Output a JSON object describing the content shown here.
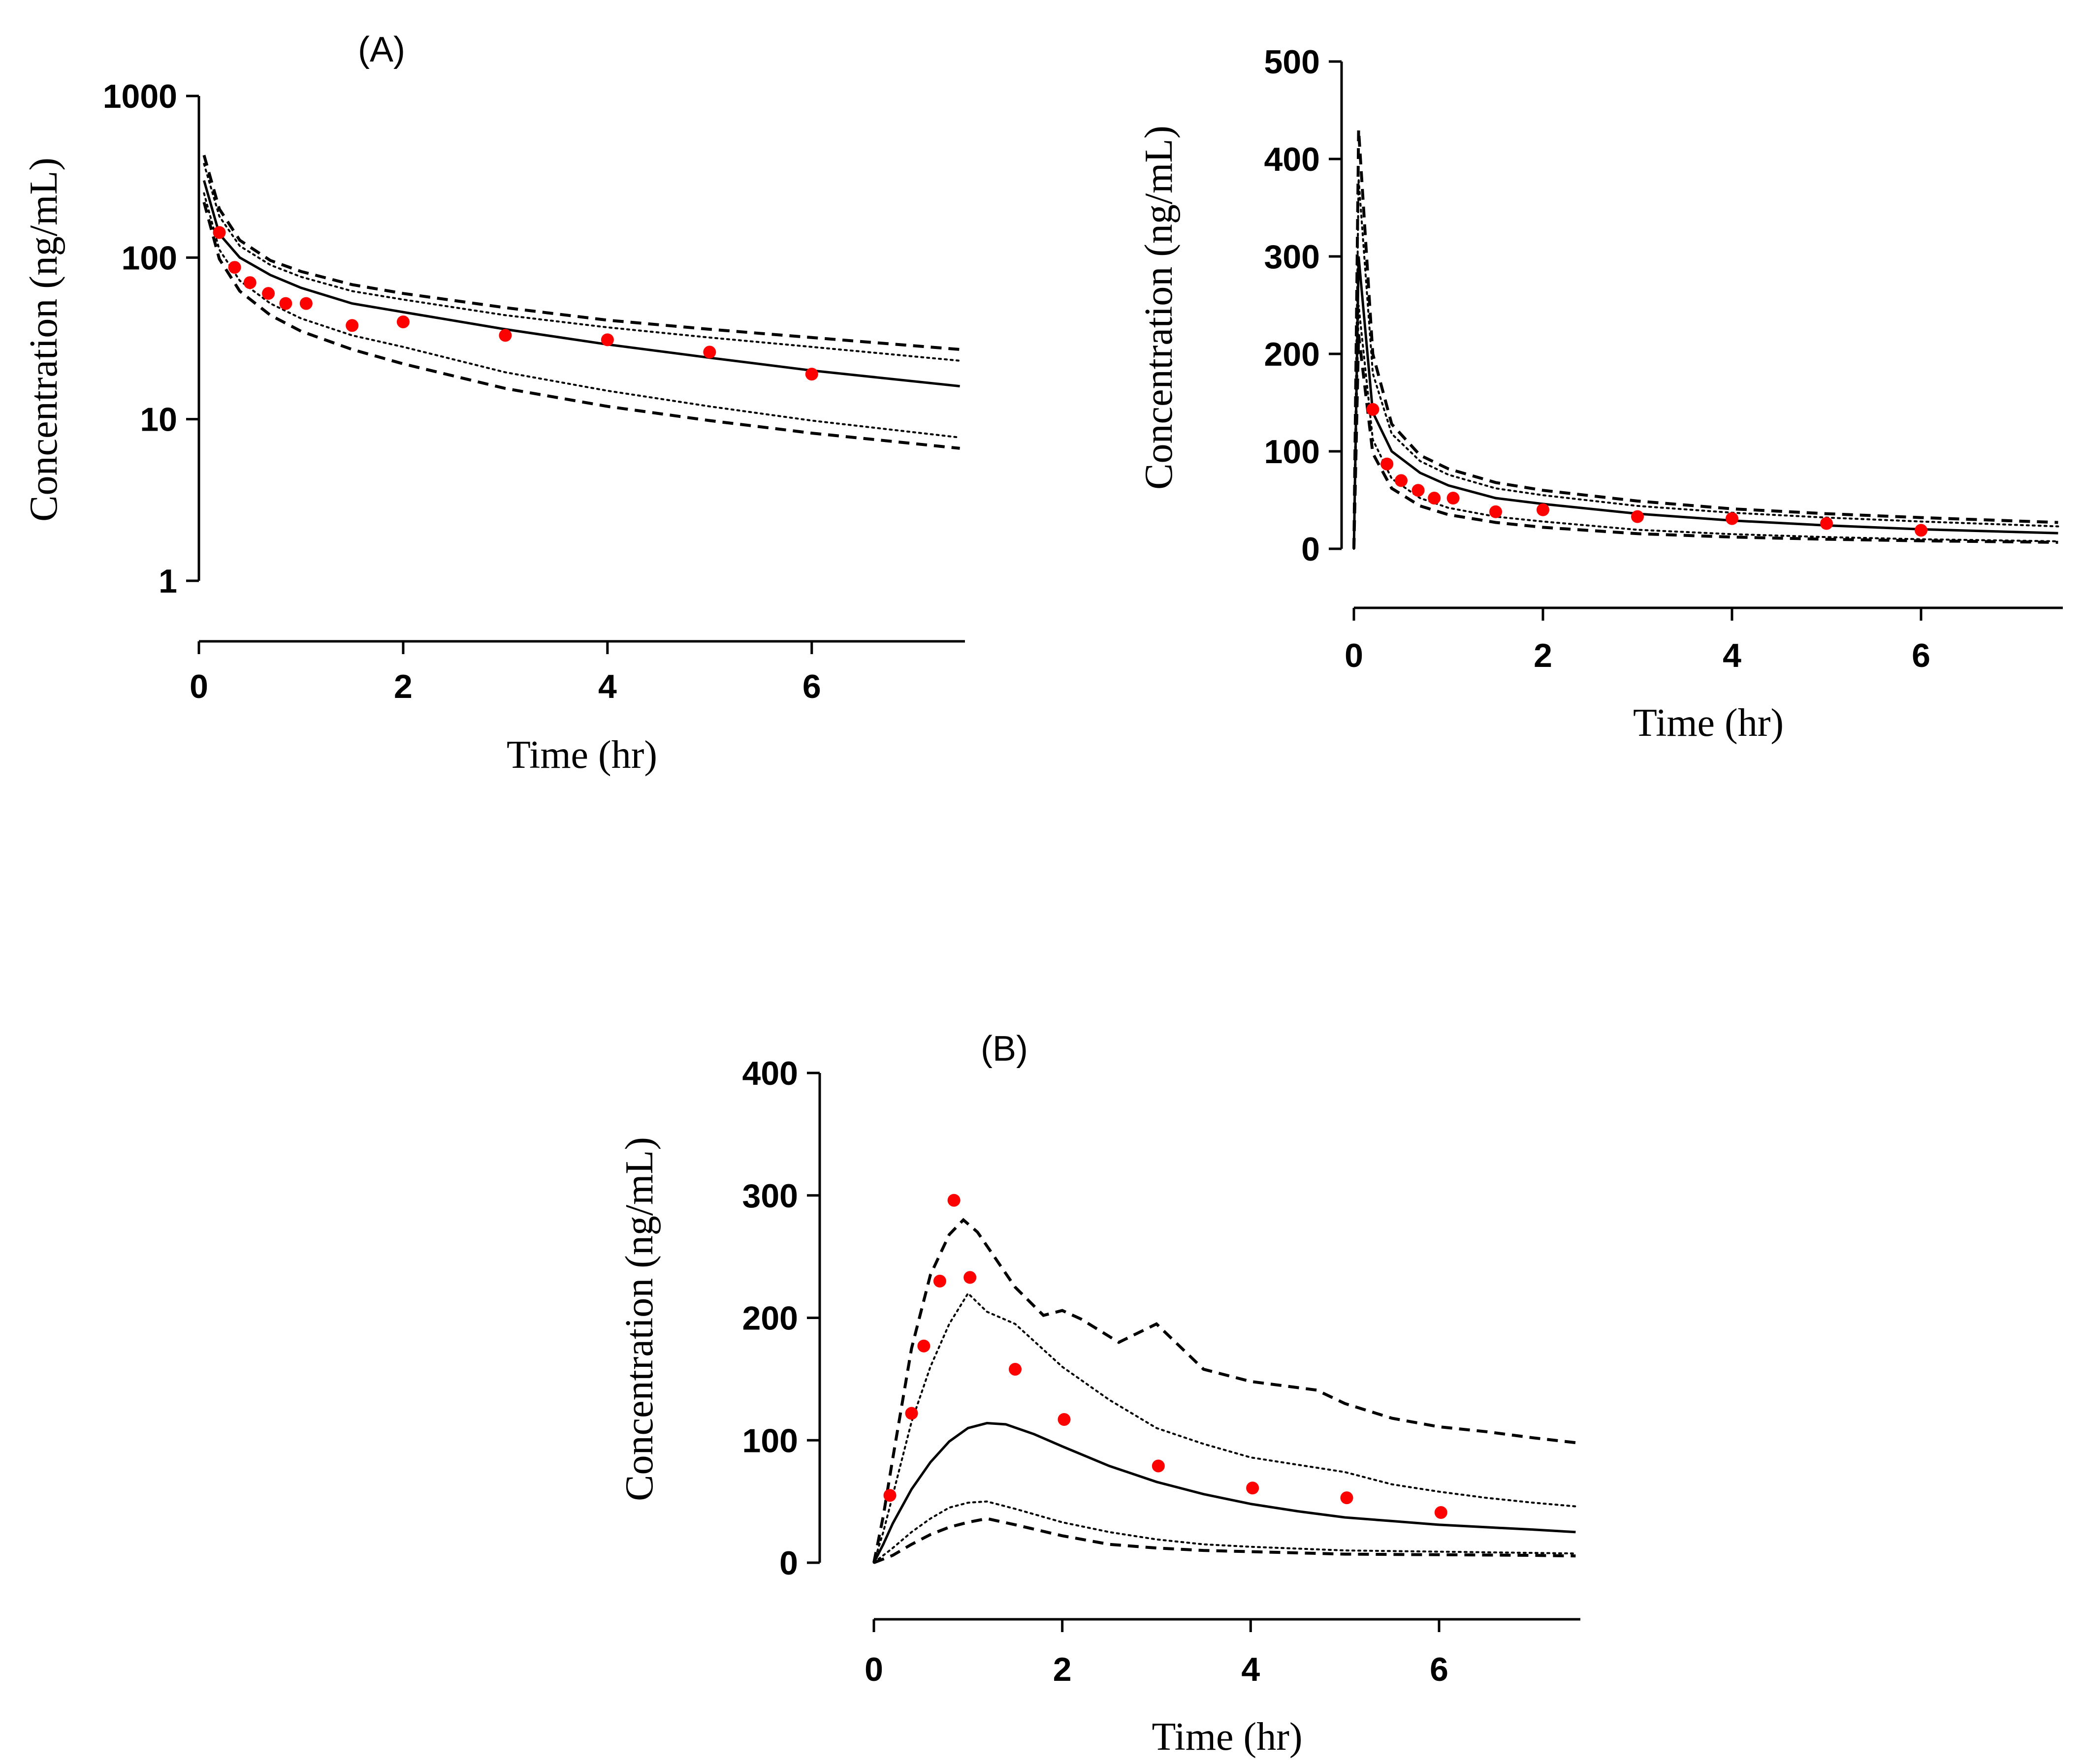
{
  "chart_data": [
    {
      "id": "A_log",
      "type": "line",
      "panel_label": "(A)",
      "title": "",
      "xlabel": "Time (hr)",
      "ylabel": "Concentration (ng/mL)",
      "yscale": "log",
      "xlim": [
        0,
        7.5
      ],
      "ylim": [
        1,
        1000
      ],
      "x_ticks": [
        0,
        2,
        4,
        6
      ],
      "x_tick_labels": [
        "0",
        "2",
        "4",
        "6"
      ],
      "y_ticks": [
        1,
        10,
        100,
        1000
      ],
      "y_tick_labels": [
        "1",
        "10",
        "100",
        "1000"
      ],
      "observed": {
        "name": "Observed",
        "color": "#ff0000",
        "x": [
          0.2,
          0.35,
          0.5,
          0.68,
          0.85,
          1.05,
          1.5,
          2.0,
          3.0,
          4.0,
          5.0,
          6.0
        ],
        "y": [
          143,
          87,
          70,
          60,
          52,
          52,
          38,
          40,
          33,
          31,
          26,
          19
        ]
      },
      "series": [
        {
          "name": "Median",
          "style": "solid",
          "x": [
            0.05,
            0.2,
            0.4,
            0.7,
            1.0,
            1.5,
            2.0,
            3.0,
            4.0,
            5.0,
            6.0,
            7.45
          ],
          "y": [
            300,
            140,
            100,
            78,
            65,
            52,
            46,
            36,
            29,
            24,
            20,
            16
          ]
        },
        {
          "name": "Upper 5th-95th",
          "style": "dotted",
          "x": [
            0.05,
            0.2,
            0.4,
            0.7,
            1.0,
            1.5,
            2.0,
            3.0,
            4.0,
            5.0,
            6.0,
            7.45
          ],
          "y": [
            380,
            180,
            118,
            90,
            76,
            62,
            55,
            44,
            37,
            32,
            28,
            23
          ]
        },
        {
          "name": "Lower 5th-95th",
          "style": "dotted",
          "x": [
            0.05,
            0.2,
            0.4,
            0.7,
            1.0,
            1.5,
            2.0,
            3.0,
            4.0,
            5.0,
            6.0,
            7.45
          ],
          "y": [
            250,
            112,
            72,
            52,
            42,
            33,
            28,
            19.5,
            15,
            12,
            9.8,
            7.7
          ]
        },
        {
          "name": "Upper 2.5th-97.5th",
          "style": "dashed",
          "x": [
            0.05,
            0.2,
            0.4,
            0.7,
            1.0,
            1.5,
            2.0,
            3.0,
            4.0,
            5.0,
            6.0,
            7.45
          ],
          "y": [
            430,
            200,
            128,
            96,
            82,
            68,
            60,
            49,
            41,
            36,
            32,
            27
          ]
        },
        {
          "name": "Lower 2.5th-97.5th",
          "style": "dashed",
          "x": [
            0.05,
            0.2,
            0.4,
            0.7,
            1.0,
            1.5,
            2.0,
            3.0,
            4.0,
            5.0,
            6.0,
            7.45
          ],
          "y": [
            220,
            98,
            62,
            44,
            35,
            27,
            22,
            15.5,
            12,
            9.8,
            8.2,
            6.6
          ]
        }
      ]
    },
    {
      "id": "A_linear",
      "type": "line",
      "panel_label": "",
      "title": "",
      "xlabel": "Time (hr)",
      "ylabel": "Concentration (ng/mL)",
      "yscale": "linear",
      "xlim": [
        0,
        7.5
      ],
      "ylim": [
        0,
        500
      ],
      "x_ticks": [
        0,
        2,
        4,
        6
      ],
      "x_tick_labels": [
        "0",
        "2",
        "4",
        "6"
      ],
      "y_ticks": [
        0,
        100,
        200,
        300,
        400,
        500
      ],
      "y_tick_labels": [
        "0",
        "100",
        "200",
        "300",
        "400",
        "500"
      ],
      "observed": {
        "name": "Observed",
        "color": "#ff0000",
        "x": [
          0.2,
          0.35,
          0.5,
          0.68,
          0.85,
          1.05,
          1.5,
          2.0,
          3.0,
          4.0,
          5.0,
          6.0
        ],
        "y": [
          143,
          87,
          70,
          60,
          52,
          52,
          38,
          40,
          33,
          31,
          26,
          19
        ]
      },
      "series": [
        {
          "name": "Median",
          "style": "solid",
          "x": [
            0,
            0.05,
            0.2,
            0.4,
            0.7,
            1.0,
            1.5,
            2.0,
            3.0,
            4.0,
            5.0,
            6.0,
            7.45
          ],
          "y": [
            0,
            300,
            140,
            100,
            78,
            65,
            52,
            46,
            36,
            29,
            24,
            20,
            16
          ]
        },
        {
          "name": "Upper 5th-95th",
          "style": "dotted",
          "x": [
            0,
            0.05,
            0.2,
            0.4,
            0.7,
            1.0,
            1.5,
            2.0,
            3.0,
            4.0,
            5.0,
            6.0,
            7.45
          ],
          "y": [
            0,
            380,
            180,
            118,
            90,
            76,
            62,
            55,
            44,
            37,
            32,
            28,
            23
          ]
        },
        {
          "name": "Lower 5th-95th",
          "style": "dotted",
          "x": [
            0,
            0.05,
            0.2,
            0.4,
            0.7,
            1.0,
            1.5,
            2.0,
            3.0,
            4.0,
            5.0,
            6.0,
            7.45
          ],
          "y": [
            0,
            250,
            112,
            72,
            52,
            42,
            33,
            28,
            19.5,
            15,
            12,
            9.8,
            7.7
          ]
        },
        {
          "name": "Upper 2.5th-97.5th",
          "style": "dashed",
          "x": [
            0,
            0.05,
            0.2,
            0.4,
            0.7,
            1.0,
            1.5,
            2.0,
            3.0,
            4.0,
            5.0,
            6.0,
            7.45
          ],
          "y": [
            0,
            430,
            200,
            128,
            96,
            82,
            68,
            60,
            49,
            41,
            36,
            32,
            27
          ]
        },
        {
          "name": "Lower 2.5th-97.5th",
          "style": "dashed",
          "x": [
            0,
            0.05,
            0.2,
            0.4,
            0.7,
            1.0,
            1.5,
            2.0,
            3.0,
            4.0,
            5.0,
            6.0,
            7.45
          ],
          "y": [
            0,
            220,
            98,
            62,
            44,
            35,
            27,
            22,
            15.5,
            12,
            9.8,
            8.2,
            6.6
          ]
        }
      ]
    },
    {
      "id": "B_linear",
      "type": "line",
      "panel_label": "(B)",
      "title": "",
      "xlabel": "Time (hr)",
      "ylabel": "Concentration (ng/mL)",
      "yscale": "linear",
      "xlim": [
        0,
        7.5
      ],
      "ylim": [
        0,
        400
      ],
      "x_ticks": [
        0,
        2,
        4,
        6
      ],
      "x_tick_labels": [
        "0",
        "2",
        "4",
        "6"
      ],
      "y_ticks": [
        0,
        100,
        200,
        300,
        400
      ],
      "y_tick_labels": [
        "0",
        "100",
        "200",
        "300",
        "400"
      ],
      "observed": {
        "name": "Observed",
        "color": "#ff0000",
        "x": [
          0.17,
          0.4,
          0.53,
          0.7,
          0.85,
          1.02,
          1.5,
          2.02,
          3.02,
          4.02,
          5.02,
          6.02
        ],
        "y": [
          55,
          122,
          177,
          230,
          296,
          233,
          158,
          117,
          79,
          61,
          53,
          41
        ]
      },
      "series": [
        {
          "name": "Median",
          "style": "solid",
          "x": [
            0,
            0.1,
            0.2,
            0.4,
            0.6,
            0.8,
            1.0,
            1.2,
            1.4,
            1.7,
            2.0,
            2.5,
            3.0,
            3.5,
            4.0,
            4.5,
            5.0,
            5.5,
            6.0,
            6.5,
            7.0,
            7.45
          ],
          "y": [
            0,
            15,
            32,
            60,
            82,
            99,
            110,
            114,
            113,
            105,
            95,
            79,
            66,
            56,
            48,
            42,
            37,
            34,
            31,
            29,
            27,
            25
          ]
        },
        {
          "name": "Upper 5th-95th",
          "style": "dotted",
          "x": [
            0,
            0.1,
            0.2,
            0.4,
            0.6,
            0.8,
            1.0,
            1.2,
            1.5,
            2.0,
            2.5,
            3.0,
            3.5,
            4.0,
            4.5,
            5.0,
            5.5,
            6.0,
            6.5,
            7.0,
            7.45
          ],
          "y": [
            0,
            25,
            55,
            115,
            160,
            195,
            220,
            205,
            195,
            160,
            133,
            110,
            97,
            86,
            80,
            74,
            64,
            58,
            53,
            49,
            46
          ]
        },
        {
          "name": "Lower 5th-95th",
          "style": "dotted",
          "x": [
            0,
            0.2,
            0.4,
            0.6,
            0.8,
            1.0,
            1.2,
            1.5,
            2.0,
            2.5,
            3.0,
            3.5,
            4.0,
            5.0,
            6.0,
            7.0,
            7.45
          ],
          "y": [
            0,
            12,
            25,
            36,
            45,
            49,
            50,
            44,
            33,
            25,
            19,
            15,
            13,
            10,
            9,
            8,
            7.5
          ]
        },
        {
          "name": "Upper 2.5th-97.5th",
          "style": "dashed",
          "x": [
            0,
            0.1,
            0.2,
            0.4,
            0.6,
            0.8,
            0.95,
            1.1,
            1.5,
            1.8,
            2.0,
            2.2,
            2.6,
            3.0,
            3.5,
            4.0,
            4.7,
            5.0,
            5.5,
            6.0,
            6.5,
            7.0,
            7.45
          ],
          "y": [
            0,
            38,
            85,
            175,
            235,
            268,
            280,
            270,
            225,
            202,
            206,
            199,
            180,
            195,
            158,
            148,
            141,
            130,
            118,
            111,
            107,
            102,
            98
          ]
        },
        {
          "name": "Lower 2.5th-97.5th",
          "style": "dashed",
          "x": [
            0,
            0.2,
            0.4,
            0.6,
            0.8,
            1.0,
            1.2,
            1.5,
            2.0,
            2.5,
            3.0,
            3.5,
            4.0,
            5.0,
            6.0,
            7.0,
            7.45
          ],
          "y": [
            0,
            6,
            15,
            23,
            29,
            33,
            36,
            31,
            22,
            15,
            12,
            10,
            9,
            7,
            6.5,
            6,
            5.5
          ]
        }
      ]
    }
  ]
}
